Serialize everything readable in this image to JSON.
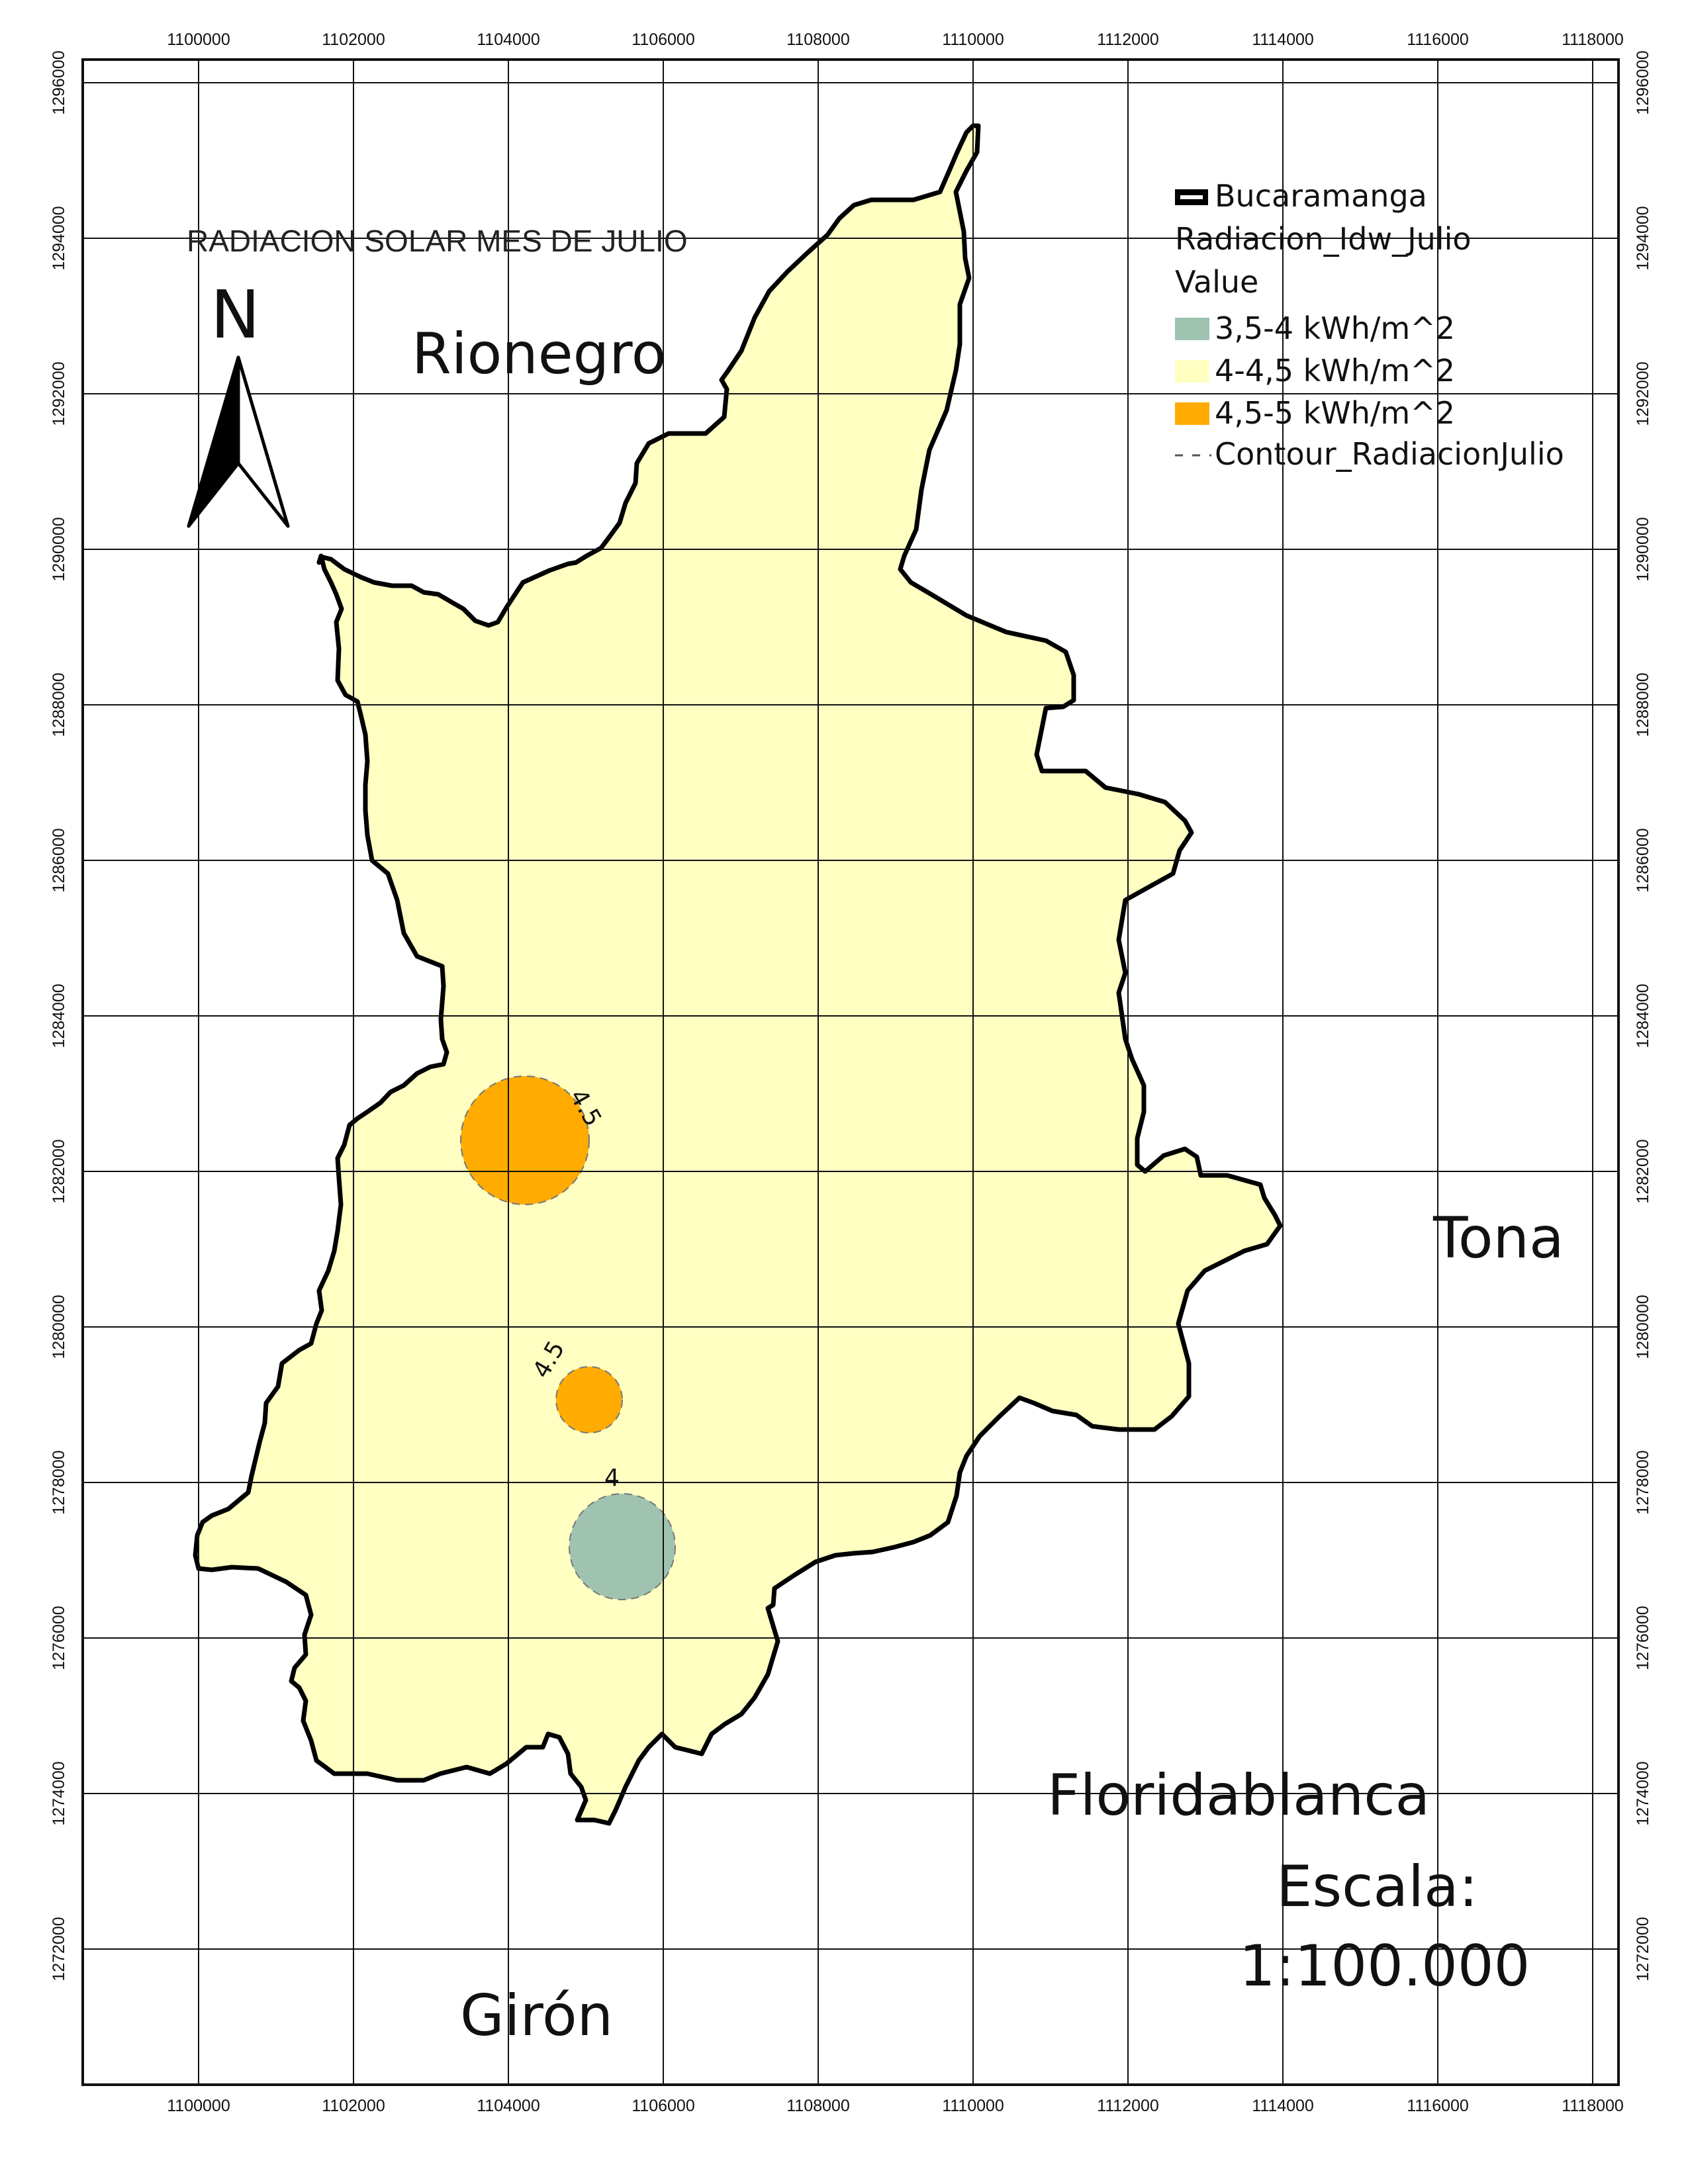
{
  "map": {
    "title": "RADIACION SOLAR MES DE JULIO",
    "north_label": "N",
    "x_ticks": [
      "1100000",
      "1102000",
      "1104000",
      "1106000",
      "1108000",
      "1110000",
      "1112000",
      "1114000",
      "1116000",
      "1118000"
    ],
    "y_ticks": [
      "1296000",
      "1294000",
      "1292000",
      "1290000",
      "1288000",
      "1286000",
      "1284000",
      "1282000",
      "1280000",
      "1278000",
      "1276000",
      "1274000",
      "1272000"
    ],
    "places": {
      "rionegro": "Rionegro",
      "tona": "Tona",
      "floridablanca": "Floridablanca",
      "giron": "Girón"
    },
    "scale": {
      "label": "Escala:",
      "value": "1:100.000"
    },
    "legend": {
      "boundary_label": "Bucaramanga",
      "raster_label": "Radiacion_Idw_Julio",
      "value_label": "Value",
      "classes": [
        {
          "label": "3,5-4 kWh/m^2",
          "color": "#9fc3b0"
        },
        {
          "label": "4-4,5 kWh/m^2",
          "color": "#ffffc2"
        },
        {
          "label": "4,5-5 kWh/m^2",
          "color": "#ffab00"
        }
      ],
      "contour_label": "Contour_RadiacionJulio"
    },
    "contour_labels": [
      "4.5",
      "4.5",
      "4"
    ],
    "colors": {
      "region_fill": "#ffffc2",
      "high": "#ffab00",
      "low": "#9fc3b0",
      "boundary": "#000000",
      "grid": "#111111"
    }
  }
}
